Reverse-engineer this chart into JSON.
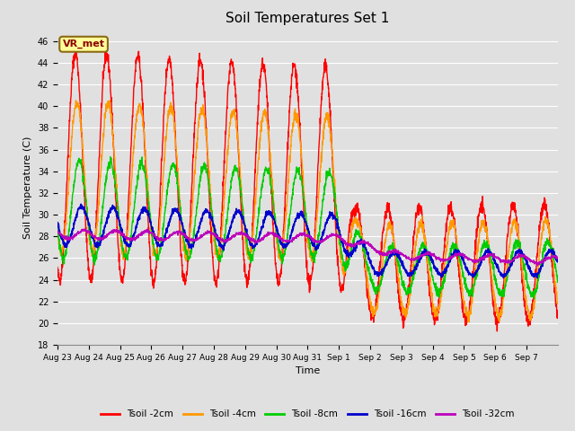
{
  "title": "Soil Temperatures Set 1",
  "xlabel": "Time",
  "ylabel": "Soil Temperature (C)",
  "ylim": [
    18,
    47
  ],
  "yticks": [
    18,
    20,
    22,
    24,
    26,
    28,
    30,
    32,
    34,
    36,
    38,
    40,
    42,
    44,
    46
  ],
  "bg_color": "#e0e0e0",
  "legend_labels": [
    "Tsoil -2cm",
    "Tsoil -4cm",
    "Tsoil -8cm",
    "Tsoil -16cm",
    "Tsoil -32cm"
  ],
  "legend_colors": [
    "#ff0000",
    "#ff9900",
    "#00cc00",
    "#0000cc",
    "#bb00bb"
  ],
  "annotation_text": "VR_met",
  "num_days": 16,
  "tick_labels": [
    "Aug 23",
    "Aug 24",
    "Aug 25",
    "Aug 26",
    "Aug 27",
    "Aug 28",
    "Aug 29",
    "Aug 30",
    "Aug 31",
    "Sep 1",
    "Sep 2",
    "Sep 3",
    "Sep 4",
    "Sep 5",
    "Sep 6",
    "Sep 7"
  ]
}
